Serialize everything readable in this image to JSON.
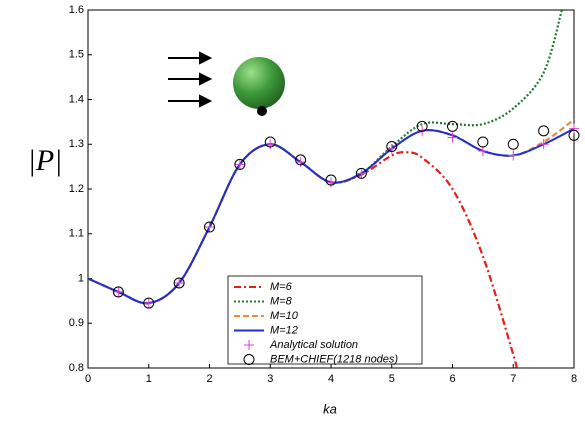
{
  "chart_data": {
    "type": "line",
    "x_label": "ka",
    "y_label": "|P|",
    "xlim": [
      0,
      8
    ],
    "xticks": [
      0,
      1,
      2,
      3,
      4,
      5,
      6,
      7,
      8
    ],
    "ylim": [
      0.8,
      1.6
    ],
    "yticks": [
      0.8,
      0.9,
      1,
      1.1,
      1.2,
      1.3,
      1.4,
      1.5,
      1.6
    ],
    "series": [
      {
        "name": "M=6",
        "color": "#e0201b",
        "style": "dashdot",
        "x": [
          0,
          0.5,
          1,
          1.5,
          2,
          2.5,
          3,
          3.5,
          4,
          4.5,
          5,
          5.25,
          5.5,
          6,
          6.5,
          7,
          7.05
        ],
        "values": [
          1.0,
          0.97,
          0.945,
          0.99,
          1.115,
          1.255,
          1.3,
          1.26,
          1.215,
          1.232,
          1.275,
          1.282,
          1.27,
          1.2,
          1.05,
          0.83,
          0.8
        ]
      },
      {
        "name": "M=8",
        "color": "#1b7a2e",
        "style": "dotted",
        "x": [
          0,
          0.5,
          1,
          1.5,
          2,
          2.5,
          3,
          3.5,
          4,
          4.5,
          5,
          5.5,
          6,
          6.5,
          7,
          7.5,
          7.8
        ],
        "values": [
          1.0,
          0.97,
          0.945,
          0.99,
          1.115,
          1.255,
          1.3,
          1.26,
          1.215,
          1.235,
          1.295,
          1.345,
          1.345,
          1.345,
          1.38,
          1.46,
          1.6
        ]
      },
      {
        "name": "M=10",
        "color": "#f08a3a",
        "style": "dashed",
        "x": [
          0,
          0.5,
          1,
          1.5,
          2,
          2.5,
          3,
          3.5,
          4,
          4.5,
          5,
          5.5,
          6,
          6.5,
          7,
          7.5,
          8
        ],
        "values": [
          1.0,
          0.97,
          0.945,
          0.99,
          1.115,
          1.255,
          1.3,
          1.26,
          1.215,
          1.235,
          1.29,
          1.33,
          1.32,
          1.285,
          1.275,
          1.305,
          1.355
        ]
      },
      {
        "name": "M=12",
        "color": "#1f2fd0",
        "style": "solid",
        "x": [
          0,
          0.5,
          1,
          1.5,
          2,
          2.5,
          3,
          3.5,
          4,
          4.5,
          5,
          5.5,
          6,
          6.5,
          7,
          7.5,
          8
        ],
        "values": [
          1.0,
          0.97,
          0.945,
          0.99,
          1.115,
          1.255,
          1.3,
          1.26,
          1.215,
          1.235,
          1.29,
          1.33,
          1.32,
          1.285,
          1.275,
          1.3,
          1.335
        ]
      },
      {
        "name": "Analytical solution",
        "color": "#e040e0",
        "style": "plus",
        "x": [
          0.5,
          1,
          1.5,
          2,
          2.5,
          3,
          3.5,
          4,
          4.5,
          5,
          5.5,
          6,
          6.5,
          7,
          7.5,
          8
        ],
        "values": [
          0.97,
          0.945,
          0.99,
          1.115,
          1.255,
          1.3,
          1.26,
          1.215,
          1.235,
          1.29,
          1.33,
          1.315,
          1.285,
          1.275,
          1.3,
          1.335
        ]
      },
      {
        "name": "BEM+CHIEF(1218 nodes)",
        "color": "#000000",
        "style": "circle",
        "x": [
          0.5,
          1,
          1.5,
          2,
          2.5,
          3,
          3.5,
          4,
          4.5,
          5,
          5.5,
          6,
          6.5,
          7,
          7.5,
          8
        ],
        "values": [
          0.97,
          0.945,
          0.99,
          1.115,
          1.255,
          1.305,
          1.265,
          1.22,
          1.235,
          1.295,
          1.34,
          1.34,
          1.305,
          1.3,
          1.33,
          1.32
        ]
      }
    ]
  }
}
